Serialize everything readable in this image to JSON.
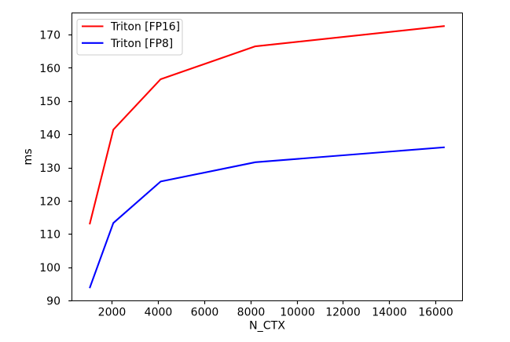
{
  "figure": {
    "background": "#ffffff"
  },
  "chart_data": {
    "type": "line",
    "x": [
      1024,
      2048,
      4096,
      8192,
      16384
    ],
    "series": [
      {
        "name": "Triton [FP16]",
        "color": "#ff0000",
        "values": [
          113.0,
          141.5,
          156.7,
          166.6,
          172.7
        ]
      },
      {
        "name": "Triton [FP8]",
        "color": "#0000ff",
        "values": [
          93.8,
          113.4,
          125.9,
          131.7,
          136.2
        ]
      }
    ],
    "title": "",
    "xlabel": "N_CTX",
    "ylabel": "ms",
    "xlim": [
      256,
      17152
    ],
    "ylim": [
      89.855,
      176.645
    ],
    "xticks": [
      2000,
      4000,
      6000,
      8000,
      10000,
      12000,
      14000,
      16000
    ],
    "yticks": [
      90,
      100,
      110,
      120,
      130,
      140,
      150,
      160,
      170
    ],
    "grid": false,
    "legend": {
      "position": "upper left",
      "entries": [
        "Triton [FP16]",
        "Triton [FP8]"
      ]
    }
  }
}
